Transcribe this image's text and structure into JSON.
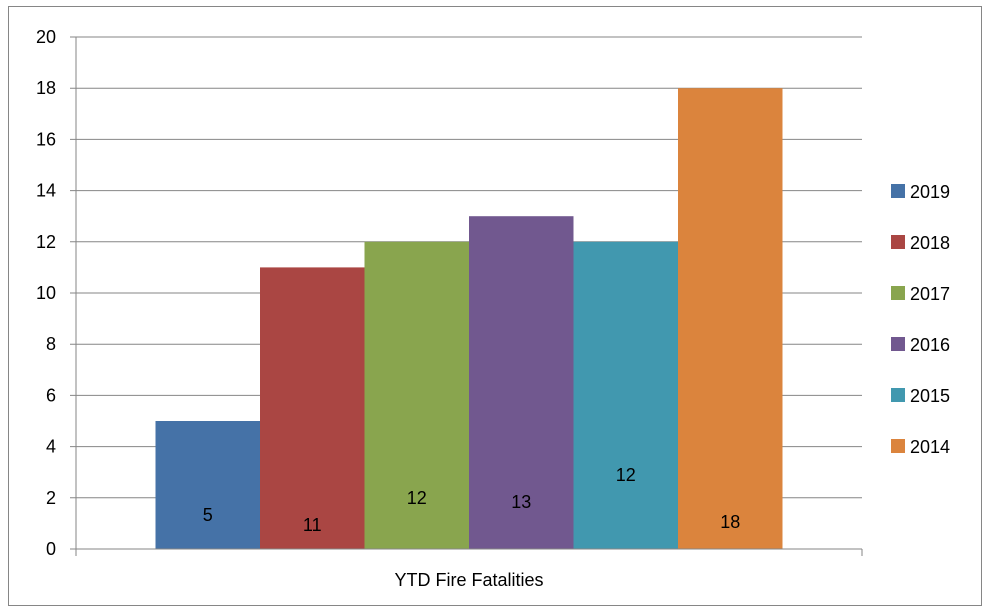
{
  "chart_data": {
    "type": "bar",
    "categories": [
      "YTD Fire Fatalities"
    ],
    "series": [
      {
        "name": "2019",
        "values": [
          5
        ],
        "color": "#4572A7"
      },
      {
        "name": "2018",
        "values": [
          11
        ],
        "color": "#AA4643"
      },
      {
        "name": "2017",
        "values": [
          12
        ],
        "color": "#89A54E"
      },
      {
        "name": "2016",
        "values": [
          13
        ],
        "color": "#71588F"
      },
      {
        "name": "2015",
        "values": [
          12
        ],
        "color": "#4198AF"
      },
      {
        "name": "2014",
        "values": [
          18
        ],
        "color": "#DB843D"
      }
    ],
    "data_labels": [
      "5",
      "11",
      "12",
      "13",
      "12",
      "18"
    ],
    "y_ticks": [
      "0",
      "2",
      "4",
      "6",
      "8",
      "10",
      "12",
      "14",
      "16",
      "18",
      "20"
    ],
    "ylim": [
      0,
      20
    ],
    "y_step": 2,
    "grid": true,
    "legend_position": "right"
  }
}
